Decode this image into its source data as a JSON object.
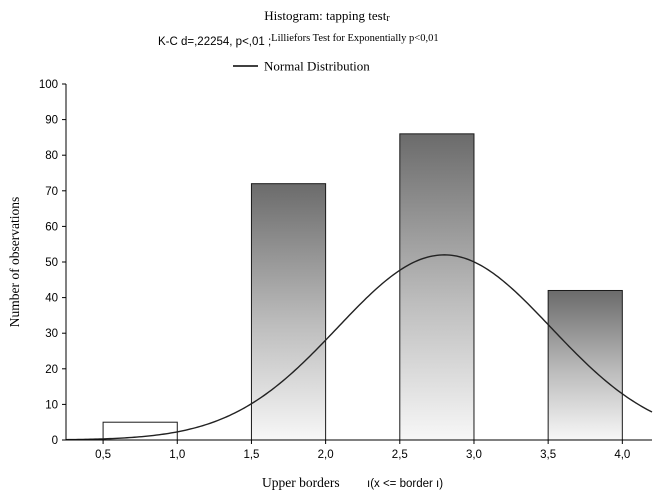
{
  "chart_data": {
    "type": "bar",
    "title": "Histogram: tapping test",
    "title_suffix": "r",
    "subtitle_main": "K-C d=,22254, p<,01 ;",
    "subtitle_extra": "Lilliefors Test for Exponentially p<0,01",
    "legend": {
      "label": "Normal Distribution",
      "placement": "top-center"
    },
    "xlabel": "Upper borders",
    "xlabel_extra": "ı(x <= border ı)",
    "ylabel": "Number of observations",
    "xlim": [
      0.25,
      4.2
    ],
    "ylim": [
      0,
      100
    ],
    "x_ticks": [
      0.5,
      1.0,
      1.5,
      2.0,
      2.5,
      3.0,
      3.5,
      4.0
    ],
    "x_tick_labels": [
      "0,5",
      "1,0",
      "1,5",
      "2,0",
      "2,5",
      "3,0",
      "3,5",
      "4,0"
    ],
    "y_ticks": [
      0,
      10,
      20,
      30,
      40,
      50,
      60,
      70,
      80,
      90,
      100
    ],
    "y_tick_labels": [
      "0",
      "10",
      "20",
      "30",
      "40",
      "50",
      "60",
      "70",
      "80",
      "90",
      "100"
    ],
    "bars": [
      {
        "from": 0.5,
        "to": 1.0,
        "value": 5
      },
      {
        "from": 1.5,
        "to": 2.0,
        "value": 72
      },
      {
        "from": 2.5,
        "to": 3.0,
        "value": 86
      },
      {
        "from": 3.5,
        "to": 4.0,
        "value": 42
      }
    ],
    "normal_curve": {
      "peak_x": 2.8,
      "peak_y": 52,
      "sd": 0.72
    },
    "grid": false
  }
}
